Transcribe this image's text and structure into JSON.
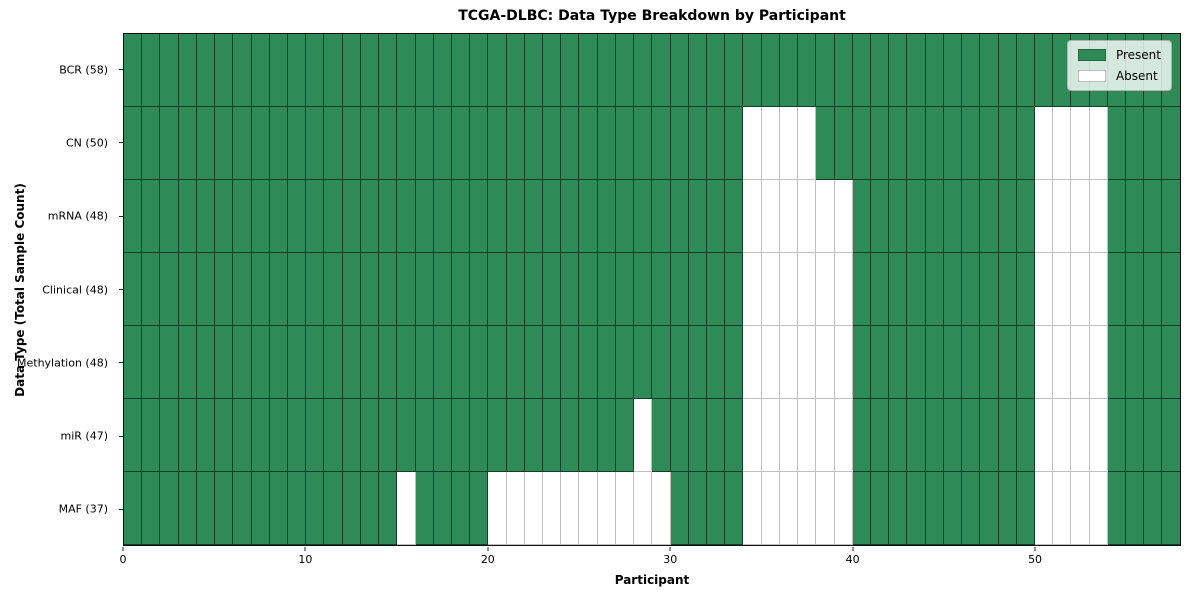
{
  "title": "TCGA-DLBC: Data Type Breakdown by Participant",
  "xlabel": "Participant",
  "ylabel": "Data Type (Total Sample Count)",
  "legend": {
    "items": [
      {
        "label": "Present",
        "color": "#2e8b57"
      },
      {
        "label": "Absent",
        "color": "#ffffff"
      }
    ]
  },
  "colors": {
    "present": "#2e8b57",
    "absent": "#ffffff"
  },
  "chart_data": {
    "type": "heatmap",
    "title": "TCGA-DLBC: Data Type Breakdown by Participant",
    "xlabel": "Participant",
    "ylabel": "Data Type (Total Sample Count)",
    "n_participants": 58,
    "x_range": [
      0,
      58
    ],
    "x_ticks": [
      0,
      10,
      20,
      30,
      40,
      50
    ],
    "grid": true,
    "legend_position": "upper right",
    "cell_states": {
      "present_value": 1,
      "absent_value": 0
    },
    "rows": [
      {
        "label": "BCR (58)",
        "data_type": "BCR",
        "total_samples": 58,
        "absent_participants": []
      },
      {
        "label": "CN (50)",
        "data_type": "CN",
        "total_samples": 50,
        "absent_participants": [
          34,
          35,
          36,
          37,
          50,
          51,
          52,
          53
        ]
      },
      {
        "label": "mRNA (48)",
        "data_type": "mRNA",
        "total_samples": 48,
        "absent_participants": [
          34,
          35,
          36,
          37,
          38,
          39,
          50,
          51,
          52,
          53
        ]
      },
      {
        "label": "Clinical (48)",
        "data_type": "Clinical",
        "total_samples": 48,
        "absent_participants": [
          34,
          35,
          36,
          37,
          38,
          39,
          50,
          51,
          52,
          53
        ]
      },
      {
        "label": "Methylation (48)",
        "data_type": "Methylation",
        "total_samples": 48,
        "absent_participants": [
          34,
          35,
          36,
          37,
          38,
          39,
          50,
          51,
          52,
          53
        ]
      },
      {
        "label": "miR (47)",
        "data_type": "miR",
        "total_samples": 47,
        "absent_participants": [
          28,
          34,
          35,
          36,
          37,
          38,
          39,
          50,
          51,
          52,
          53
        ]
      },
      {
        "label": "MAF (37)",
        "data_type": "MAF",
        "total_samples": 37,
        "absent_participants": [
          15,
          20,
          21,
          22,
          23,
          24,
          25,
          26,
          27,
          28,
          29,
          34,
          35,
          36,
          37,
          38,
          39,
          50,
          51,
          52,
          53
        ]
      }
    ]
  }
}
